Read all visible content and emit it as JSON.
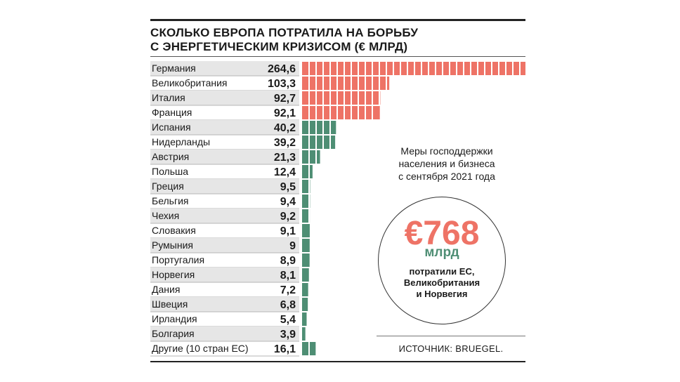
{
  "title_line1": "СКОЛЬКО ЕВРОПА ПОТРАТИЛА НА БОРЬБУ",
  "title_line2": "С ЭНЕРГЕТИЧЕСКИМ КРИЗИСОМ (€ МЛРД)",
  "info": {
    "text_line1": "Меры господдержки",
    "text_line2": "населения и бизнеса",
    "text_line3": "с сентября 2021 года",
    "big_value": "€768",
    "big_unit": "млрд",
    "caption_line1": "потратили ЕС,",
    "caption_line2": "Великобритания",
    "caption_line3": "и Норвегия"
  },
  "source": "ИСТОЧНИК: BRUEGEL.",
  "colors": {
    "highlight": "#ee7366",
    "regular": "#4e8e74",
    "row_shade": "#e6e6e6"
  },
  "chart_data": {
    "type": "bar",
    "orientation": "horizontal",
    "categories": [
      "Германия",
      "Великобритания",
      "Италия",
      "Франция",
      "Испания",
      "Нидерланды",
      "Австрия",
      "Польша",
      "Греция",
      "Бельгия",
      "Чехия",
      "Словакия",
      "Румыния",
      "Португалия",
      "Норвегия",
      "Дания",
      "Швеция",
      "Ирландия",
      "Болгария",
      "Другие (10 стран ЕС)"
    ],
    "values": [
      264.6,
      103.3,
      92.7,
      92.1,
      40.2,
      39.2,
      21.3,
      12.4,
      9.5,
      9.4,
      9.2,
      9.1,
      9,
      8.9,
      8.1,
      7.2,
      6.8,
      5.4,
      3.9,
      16.1
    ],
    "value_labels": [
      "264,6",
      "103,3",
      "92,7",
      "92,1",
      "40,2",
      "39,2",
      "21,3",
      "12,4",
      "9,5",
      "9,4",
      "9,2",
      "9,1",
      "9",
      "8,9",
      "8,1",
      "7,2",
      "6,8",
      "5,4",
      "3,9",
      "16,1"
    ],
    "highlighted": [
      true,
      true,
      true,
      true,
      false,
      false,
      false,
      false,
      false,
      false,
      false,
      false,
      false,
      false,
      false,
      false,
      false,
      false,
      false,
      false
    ],
    "xlim": [
      0,
      264.6
    ],
    "grid": false
  }
}
